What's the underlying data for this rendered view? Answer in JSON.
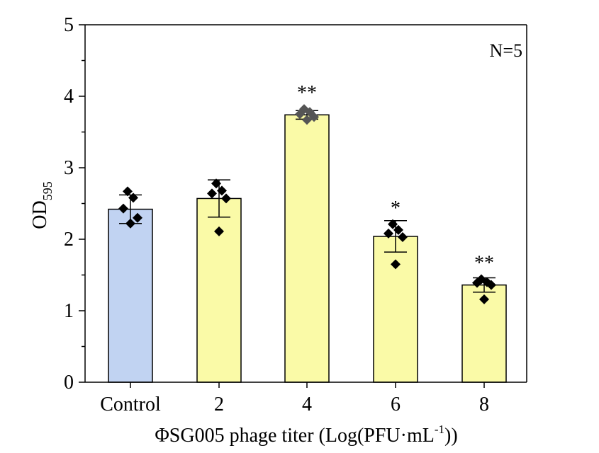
{
  "chart_data": {
    "type": "bar",
    "categories": [
      "Control",
      "2",
      "4",
      "6",
      "8"
    ],
    "values": [
      2.42,
      2.57,
      3.74,
      2.04,
      1.36
    ],
    "errors": [
      0.2,
      0.26,
      0.06,
      0.22,
      0.1
    ],
    "points": [
      [
        2.67,
        2.58,
        2.43,
        2.3,
        2.22
      ],
      [
        2.78,
        2.68,
        2.64,
        2.57,
        2.11
      ],
      [
        3.82,
        3.78,
        3.75,
        3.71,
        3.67
      ],
      [
        2.21,
        2.13,
        2.08,
        2.03,
        1.65
      ],
      [
        1.44,
        1.4,
        1.39,
        1.36,
        1.16
      ]
    ],
    "significance": [
      "",
      "",
      "**",
      "*",
      "**"
    ],
    "bar_colors": [
      "#c1d3f2",
      "#fafaa7",
      "#fafaa7",
      "#fafaa7",
      "#fafaa7"
    ],
    "ylim": [
      0,
      5
    ],
    "yticks": [
      "0",
      "1",
      "2",
      "3",
      "4",
      "5"
    ],
    "ylabel_main": "OD",
    "ylabel_sub": "595",
    "xlabel_prefix": "ΦSG005 phage titer (Log(PFU·mL",
    "xlabel_sup": "-1",
    "xlabel_suffix": "))",
    "annotation": "N=5",
    "grid": false,
    "legend": "none"
  }
}
